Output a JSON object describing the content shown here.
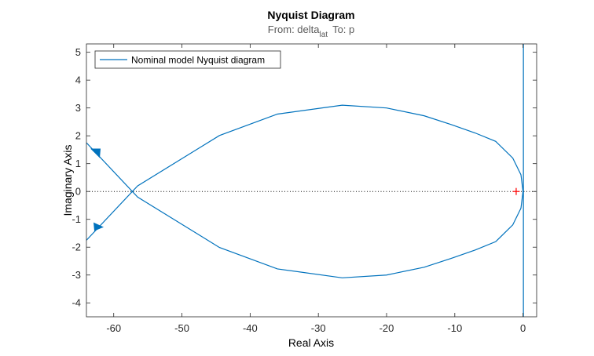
{
  "chart_data": {
    "type": "line",
    "title": "Nyquist Diagram",
    "subtitle": {
      "from_prefix": "From: delta",
      "from_subscript": "lat",
      "to": "To: p"
    },
    "xlabel": "Real Axis",
    "ylabel": "Imaginary Axis",
    "xlim": [
      -64,
      2
    ],
    "ylim": [
      -4.5,
      5.3
    ],
    "xticks": [
      -60,
      -50,
      -40,
      -30,
      -20,
      -10,
      0
    ],
    "yticks": [
      -4,
      -3,
      -2,
      -1,
      0,
      1,
      2,
      3,
      4,
      5
    ],
    "grid": false,
    "legend": {
      "position": "top-left",
      "entries": [
        "Nominal model Nyquist diagram"
      ]
    },
    "colors": {
      "series": "#0072BD",
      "critical_point": "#FF0000",
      "axis": "#262626",
      "zero_line": "#000000"
    },
    "critical_point": {
      "x": -1,
      "y": 0
    },
    "series": [
      {
        "name": "Nominal model Nyquist diagram",
        "x": [
          0,
          -0.3,
          -1.5,
          -4,
          -7,
          -10.5,
          -14.5,
          -20,
          -26.5,
          -36,
          -44.5,
          -56.5,
          -64
        ],
        "y": [
          0,
          0.6,
          1.2,
          1.8,
          2.1,
          2.4,
          2.72,
          3.0,
          3.1,
          2.78,
          2.01,
          0.2,
          -1.75
        ]
      },
      {
        "name": "",
        "x": [
          0,
          -0.3,
          -1.5,
          -4,
          -7,
          -10.5,
          -14.5,
          -20,
          -26.5,
          -36,
          -44.5,
          -56.5,
          -64
        ],
        "y": [
          0,
          -0.6,
          -1.2,
          -1.8,
          -2.1,
          -2.4,
          -2.72,
          -3.0,
          -3.1,
          -2.78,
          -2.01,
          -0.2,
          1.75
        ]
      }
    ],
    "vertical_branch": {
      "x": 0,
      "y_range": [
        -4.5,
        5.3
      ]
    },
    "arrows": [
      {
        "x": -62.5,
        "y": 1.4,
        "direction": "up-left"
      },
      {
        "x": -62.5,
        "y": -1.25,
        "direction": "down-right"
      }
    ]
  }
}
